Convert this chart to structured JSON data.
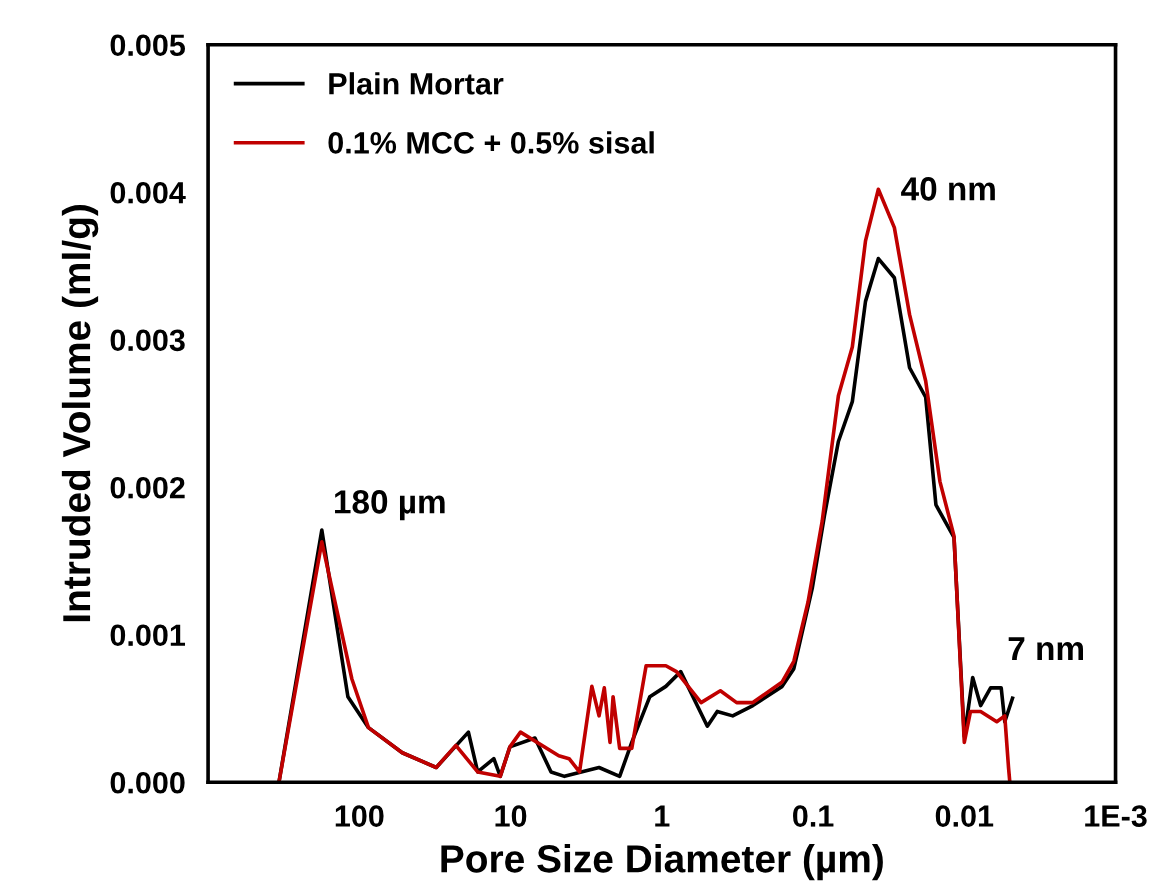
{
  "chart_data": {
    "type": "line",
    "xlabel": "Pore Size Diameter (µm)",
    "ylabel": "Intruded Volume (ml/g)",
    "log": "x",
    "xlim": [
      1000,
      0.001
    ],
    "ylim": [
      0,
      0.005
    ],
    "xticks": [
      100,
      10,
      1,
      0.1,
      0.01,
      {
        "value": 0.001,
        "label": "1E-3"
      }
    ],
    "yticks": [
      {
        "value": 0,
        "label": "0.000"
      },
      {
        "value": 0.001,
        "label": "0.001"
      },
      {
        "value": 0.002,
        "label": "0.002"
      },
      {
        "value": 0.003,
        "label": "0.003"
      },
      {
        "value": 0.004,
        "label": "0.004"
      },
      {
        "value": 0.005,
        "label": "0.005"
      }
    ],
    "grid": false,
    "legend": "top left",
    "marker": "none",
    "line_style": "solid",
    "annotations": [
      {
        "text": "180 µm",
        "x": 177,
        "y": 0.00171
      },
      {
        "text": "40 nm",
        "x": 0.037,
        "y": 0.00402
      },
      {
        "text": "7 nm",
        "x": 0.0067,
        "y": 0.00064
      }
    ],
    "series": [
      {
        "name": "Plain Mortar",
        "color": "#000000",
        "x": [
          340,
          177,
          119,
          87,
          52,
          31,
          19,
          16.5,
          12.9,
          11.7,
          10.1,
          6.9,
          5.4,
          4.4,
          2.6,
          1.9,
          1.58,
          1.2,
          0.94,
          0.75,
          0.5,
          0.43,
          0.34,
          0.25,
          0.16,
          0.134,
          0.101,
          0.084,
          0.068,
          0.055,
          0.045,
          0.037,
          0.029,
          0.023,
          0.018,
          0.0154,
          0.0117,
          0.01,
          0.0088,
          0.0078,
          0.0067,
          0.0057,
          0.0054,
          0.0048
        ],
        "values": [
          0,
          0.00171,
          0.00058,
          0.00037,
          0.0002,
          0.0001,
          0.00034,
          7e-05,
          0.00016,
          4e-05,
          0.00024,
          0.0003,
          7e-05,
          4e-05,
          0.0001,
          4e-05,
          0.00027,
          0.00058,
          0.00065,
          0.00075,
          0.00038,
          0.00048,
          0.00045,
          0.00052,
          0.00065,
          0.00077,
          0.00132,
          0.00181,
          0.00231,
          0.00258,
          0.00326,
          0.00355,
          0.00342,
          0.00281,
          0.00261,
          0.00188,
          0.00166,
          0.00031,
          0.00071,
          0.00052,
          0.00064,
          0.00064,
          0.00041,
          0.00057
        ]
      },
      {
        "name": "0.1% MCC + 0.5% sisal",
        "color": "#c00000",
        "x": [
          340,
          177,
          112,
          87,
          52,
          31,
          23,
          16.5,
          11.7,
          10.1,
          8.6,
          4.8,
          4.1,
          3.5,
          2.9,
          2.6,
          2.4,
          2.2,
          2.1,
          1.9,
          1.58,
          1.27,
          0.94,
          0.8,
          0.55,
          0.41,
          0.32,
          0.25,
          0.16,
          0.134,
          0.108,
          0.087,
          0.068,
          0.055,
          0.045,
          0.037,
          0.029,
          0.023,
          0.018,
          0.0145,
          0.0117,
          0.01,
          0.0091,
          0.0078,
          0.0061,
          0.0054,
          0.0051,
          0.005
        ],
        "values": [
          0,
          0.00163,
          0.0007,
          0.00037,
          0.0002,
          0.0001,
          0.00025,
          7e-05,
          4e-05,
          0.00024,
          0.00034,
          0.00018,
          0.00016,
          7e-05,
          0.00065,
          0.00045,
          0.00064,
          0.00027,
          0.00058,
          0.00023,
          0.00023,
          0.00079,
          0.00079,
          0.00075,
          0.00054,
          0.00062,
          0.00054,
          0.00054,
          0.00068,
          0.00082,
          0.00122,
          0.00177,
          0.00262,
          0.00295,
          0.00367,
          0.00402,
          0.00376,
          0.00317,
          0.00272,
          0.00204,
          0.00167,
          0.00027,
          0.00048,
          0.00048,
          0.00041,
          0.00045,
          0.0001,
          0
        ]
      }
    ]
  }
}
